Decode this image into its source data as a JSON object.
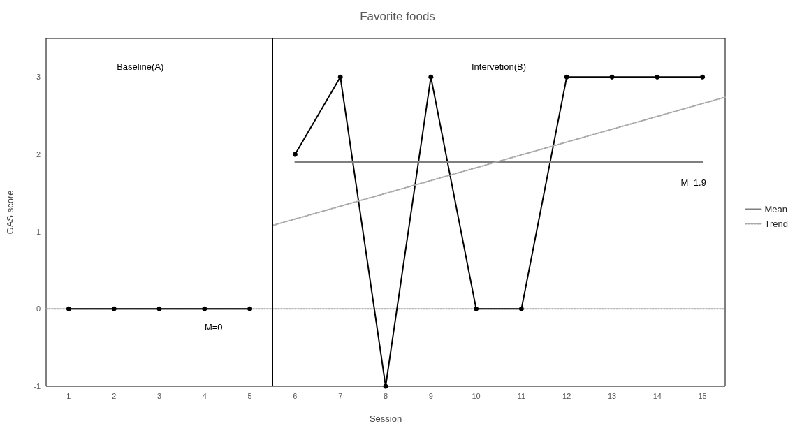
{
  "chart_data": {
    "type": "line",
    "title": "Favorite foods",
    "xlabel": "Session",
    "ylabel": "GAS score",
    "xlim": [
      0.5,
      15.5
    ],
    "xticks": [
      1,
      2,
      3,
      4,
      5,
      6,
      7,
      8,
      9,
      10,
      11,
      12,
      13,
      14,
      15
    ],
    "ylim": [
      -1,
      3.5
    ],
    "yticks": [
      -1,
      0,
      1,
      2,
      3
    ],
    "series": [
      {
        "x": [
          1,
          2,
          3,
          4,
          5
        ],
        "values": [
          0,
          0,
          0,
          0,
          0
        ],
        "color": "#000000",
        "marker": "circle",
        "line_style": "solid"
      },
      {
        "x": [
          6,
          7,
          8,
          9,
          10,
          11,
          12,
          13,
          14,
          15
        ],
        "values": [
          2,
          3,
          -1,
          3,
          0,
          0,
          3,
          3,
          3,
          3
        ],
        "color": "#000000",
        "marker": "circle",
        "line_style": "solid"
      },
      {
        "name": "Mean",
        "x": [
          1,
          5
        ],
        "values": [
          0,
          0
        ],
        "color": "#7f7f7f",
        "marker": "none",
        "line_style": "solid"
      },
      {
        "x": [
          6,
          15
        ],
        "values": [
          1.9,
          1.9
        ],
        "color": "#7f7f7f",
        "marker": "none",
        "line_style": "solid"
      },
      {
        "name": "Trend",
        "x": [
          0.5,
          15.5
        ],
        "values": [
          0,
          0
        ],
        "color": "#a6a6a6",
        "marker": "none",
        "line_style": "dotted"
      },
      {
        "x": [
          5.5,
          15.5
        ],
        "values": [
          1.08,
          2.74
        ],
        "color": "#a6a6a6",
        "marker": "none",
        "line_style": "dotted"
      }
    ],
    "ref_lines": [
      {
        "axis": "x",
        "value": 5.5,
        "color": "#000000",
        "line_style": "solid"
      }
    ],
    "annotations": [
      "Baseline(A)",
      "Intervetion(B)",
      "M=0",
      "M=1.9"
    ],
    "grid": false,
    "legend": "right"
  }
}
